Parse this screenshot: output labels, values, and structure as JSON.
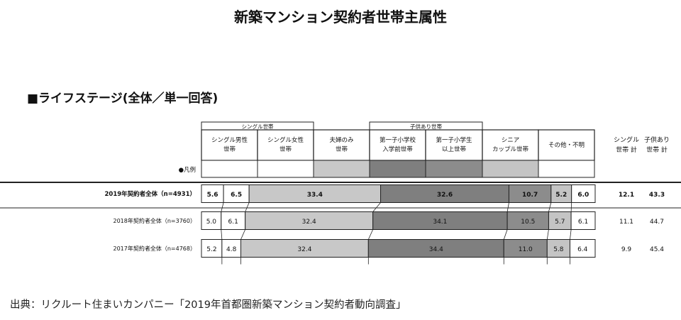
{
  "title": "新築マンション契約者世帯主属性",
  "section_title": "■ライフステージ(全体／単一回答)",
  "source": "出典：リクルート住まいカンパニー「2019年首都圏新築マンション契約者動向調査」",
  "legend_row_label": "●凡例",
  "header_groups": [
    {
      "label": "シングル世帯"
    },
    {
      "label": "子供あり世帯"
    }
  ],
  "header_columns": [
    {
      "line1": "シングル男性",
      "line2": "世帯"
    },
    {
      "line1": "シングル女性",
      "line2": "世帯"
    },
    {
      "line1": "夫婦のみ",
      "line2": "世帯"
    },
    {
      "line1": "第一子小学校",
      "line2": "入学前世帯"
    },
    {
      "line1": "第一子小学生",
      "line2": "以上世帯"
    },
    {
      "line1": "シニア",
      "line2": "カップル世帯"
    },
    {
      "line1": "その他・不明",
      "line2": ""
    }
  ],
  "total_headers": [
    {
      "line1": "シングル",
      "line2": "世帯 計"
    },
    {
      "line1": "子供あり",
      "line2": "世帯 計"
    }
  ],
  "colors": {
    "single_male": "#ffffff",
    "single_female": "#ffffff",
    "couple": "#c8c8c8",
    "child_preschool": "#7f7f7f",
    "child_school": "#8c8c8c",
    "senior": "#c4c4c4",
    "other": "#ffffff",
    "border": "#222222"
  },
  "chart_data": {
    "type": "bar",
    "orientation": "horizontal",
    "stacked": true,
    "unit": "%",
    "categories": [
      "2019年契約者全体（n=4931）",
      "2018年契約者全体（n=3760）",
      "2017年契約者全体（n=4768）"
    ],
    "series": [
      {
        "name": "シングル男性世帯",
        "values": [
          5.6,
          5.0,
          5.2
        ]
      },
      {
        "name": "シングル女性世帯",
        "values": [
          6.5,
          6.1,
          4.8
        ]
      },
      {
        "name": "夫婦のみ世帯",
        "values": [
          33.4,
          32.4,
          32.4
        ]
      },
      {
        "name": "第一子小学校入学前世帯",
        "values": [
          32.6,
          34.1,
          34.4
        ]
      },
      {
        "name": "第一子小学生以上世帯",
        "values": [
          10.7,
          10.5,
          11.0
        ]
      },
      {
        "name": "シニアカップル世帯",
        "values": [
          5.2,
          5.7,
          5.8
        ]
      },
      {
        "name": "その他・不明",
        "values": [
          6.0,
          6.1,
          6.4
        ]
      }
    ],
    "totals": {
      "single": [
        "12.1",
        "11.1",
        "9.9"
      ],
      "child": [
        "43.3",
        "44.7",
        "45.4"
      ]
    },
    "value_labels": [
      [
        "5.6",
        "6.5",
        "33.4",
        "32.6",
        "10.7",
        "5.2",
        "6.0"
      ],
      [
        "5.0",
        "6.1",
        "32.4",
        "34.1",
        "10.5",
        "5.7",
        "6.1"
      ],
      [
        "5.2",
        "4.8",
        "32.4",
        "34.4",
        "11.0",
        "5.8",
        "6.4"
      ]
    ],
    "bold_rows": [
      true,
      false,
      false
    ]
  }
}
